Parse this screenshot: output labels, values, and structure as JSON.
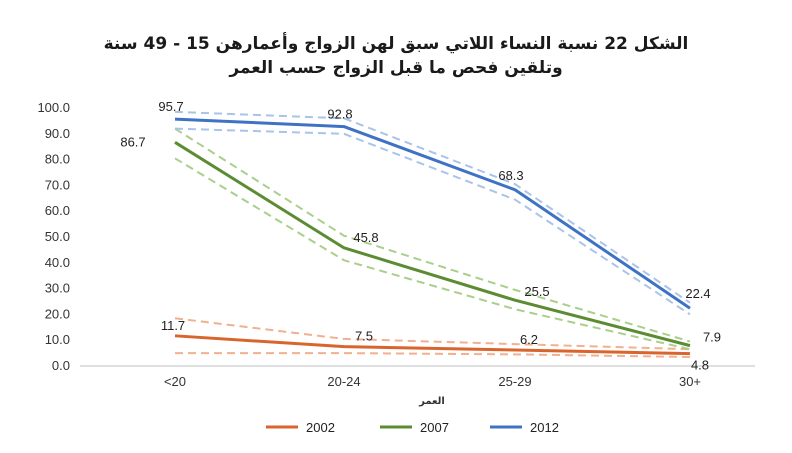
{
  "title_line1": "الشكل 22 نسبة النساء اللاتي سبق لهن الزواج وأعمارهن 15 - 49 سنة",
  "title_line2": "وتلقين فحص ما قبل الزواج حسب العمر",
  "chart_data": {
    "type": "line",
    "title": "الشكل 22 نسبة النساء اللاتي سبق لهن الزواج وأعمارهن 15 - 49 سنة وتلقين فحص ما قبل الزواج حسب العمر",
    "xlabel": "العمر",
    "ylabel": "",
    "categories": [
      "<20",
      "20-24",
      "25-29",
      "30+"
    ],
    "ylim": [
      0,
      100
    ],
    "yticks": [
      "0.0",
      "10.0",
      "20.0",
      "30.0",
      "40.0",
      "50.0",
      "60.0",
      "70.0",
      "80.0",
      "90.0",
      "100.0"
    ],
    "grid": false,
    "legend_position": "bottom",
    "series": [
      {
        "name": "2002",
        "color": "#d9652e",
        "band_color": "#f2b08f",
        "values": [
          11.7,
          7.5,
          6.2,
          4.8
        ],
        "labels": [
          "11.7",
          "7.5",
          "6.2",
          "4.8"
        ],
        "ci_upper": [
          18.5,
          10.5,
          8.5,
          6.5
        ],
        "ci_lower": [
          5.0,
          5.0,
          4.5,
          3.5
        ]
      },
      {
        "name": "2007",
        "color": "#5b8c32",
        "band_color": "#a9cf8c",
        "values": [
          86.7,
          45.8,
          25.5,
          7.9
        ],
        "labels": [
          "86.7",
          "45.8",
          "25.5",
          "7.9"
        ],
        "ci_upper": [
          92.0,
          50.5,
          29.5,
          9.5
        ],
        "ci_lower": [
          80.5,
          41.0,
          22.0,
          6.5
        ]
      },
      {
        "name": "2012",
        "color": "#3e72c4",
        "band_color": "#a9c4ea",
        "values": [
          95.7,
          92.8,
          68.3,
          22.4
        ],
        "labels": [
          "95.7",
          "92.8",
          "68.3",
          "22.4"
        ],
        "ci_upper": [
          98.5,
          96.0,
          70.5,
          24.5
        ],
        "ci_lower": [
          92.0,
          90.0,
          64.5,
          20.0
        ]
      }
    ]
  }
}
